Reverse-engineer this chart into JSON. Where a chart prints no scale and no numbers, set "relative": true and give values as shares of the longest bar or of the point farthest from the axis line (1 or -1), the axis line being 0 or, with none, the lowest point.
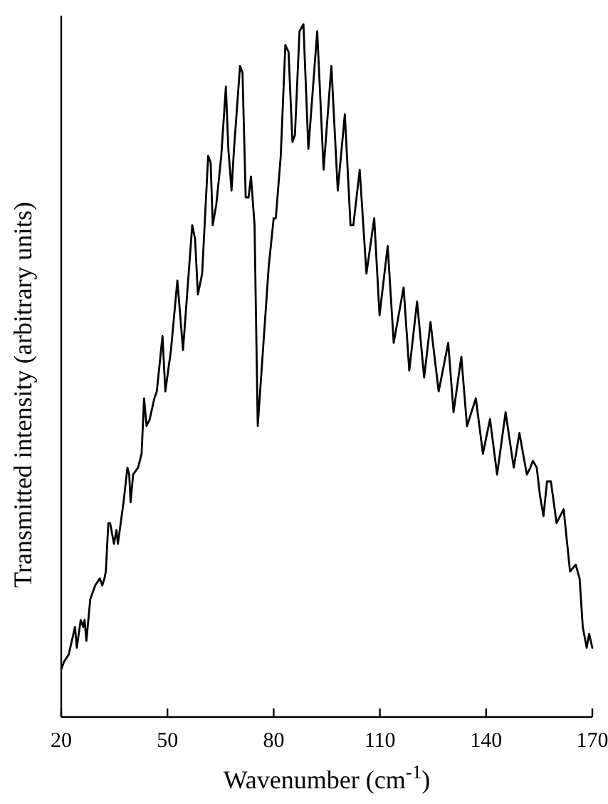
{
  "chart_data": {
    "type": "line",
    "xlabel": "Wavenumber (cm$^{-1}$)",
    "ylabel": "Transmitted intensity (arbitrary units)",
    "relative": true,
    "xlim": [
      20,
      170
    ],
    "xticks": [
      20,
      50,
      80,
      110,
      140,
      170
    ],
    "line_style": "solid",
    "color": "#000000",
    "x": [
      20.1,
      20.8,
      22.1,
      23.9,
      24.4,
      25.5,
      26.2,
      26.6,
      27.1,
      28.2,
      29.6,
      30.9,
      31.6,
      32.2,
      32.6,
      33.3,
      33.8,
      34.9,
      35.6,
      36.0,
      37.6,
      38.7,
      39.2,
      39.6,
      40.3,
      41.7,
      42.7,
      43.4,
      44.1,
      45.0,
      46.3,
      47.0,
      48.6,
      49.4,
      51.0,
      52.8,
      54.4,
      57.0,
      57.8,
      58.6,
      59.8,
      61.5,
      62.2,
      62.8,
      63.8,
      65.2,
      66.5,
      67.2,
      68.1,
      68.8,
      70.5,
      71.2,
      72.1,
      72.9,
      73.6,
      74.6,
      75.5,
      78.6,
      80.0,
      80.6,
      82.0,
      83.3,
      84.2,
      85.3,
      86.0,
      87.3,
      88.4,
      89.8,
      92.3,
      94.1,
      96.3,
      98.1,
      100.1,
      101.7,
      102.5,
      104.3,
      106.2,
      108.4,
      109.9,
      112.2,
      113.9,
      116.7,
      118.3,
      120.5,
      122.5,
      124.3,
      125.2,
      126.6,
      129.3,
      130.8,
      133.0,
      134.6,
      137.1,
      139.1,
      141.1,
      143.1,
      145.5,
      147.8,
      149.4,
      151.5,
      152.5,
      153.2,
      154.3,
      155.2,
      156.2,
      157.2,
      158.3,
      159.9,
      161.9,
      163.7,
      165.3,
      166.4,
      167.3,
      168.4,
      169.1,
      170.0
    ],
    "values": [
      0.07,
      0.08,
      0.09,
      0.13,
      0.1,
      0.14,
      0.13,
      0.14,
      0.11,
      0.17,
      0.19,
      0.2,
      0.19,
      0.2,
      0.21,
      0.28,
      0.28,
      0.25,
      0.27,
      0.25,
      0.31,
      0.36,
      0.35,
      0.31,
      0.35,
      0.36,
      0.38,
      0.46,
      0.42,
      0.43,
      0.46,
      0.47,
      0.55,
      0.47,
      0.53,
      0.63,
      0.53,
      0.71,
      0.69,
      0.61,
      0.64,
      0.81,
      0.8,
      0.71,
      0.74,
      0.81,
      0.91,
      0.82,
      0.76,
      0.82,
      0.94,
      0.93,
      0.75,
      0.75,
      0.78,
      0.71,
      0.42,
      0.65,
      0.72,
      0.72,
      0.81,
      0.97,
      0.96,
      0.83,
      0.84,
      0.99,
      1,
      0.82,
      0.99,
      0.79,
      0.94,
      0.76,
      0.87,
      0.71,
      0.71,
      0.79,
      0.64,
      0.72,
      0.58,
      0.68,
      0.54,
      0.62,
      0.5,
      0.6,
      0.49,
      0.57,
      0.53,
      0.47,
      0.54,
      0.44,
      0.52,
      0.42,
      0.46,
      0.38,
      0.43,
      0.35,
      0.44,
      0.36,
      0.41,
      0.35,
      0.36,
      0.37,
      0.36,
      0.32,
      0.29,
      0.34,
      0.34,
      0.28,
      0.3,
      0.21,
      0.22,
      0.2,
      0.13,
      0.1,
      0.12,
      0.1
    ]
  }
}
